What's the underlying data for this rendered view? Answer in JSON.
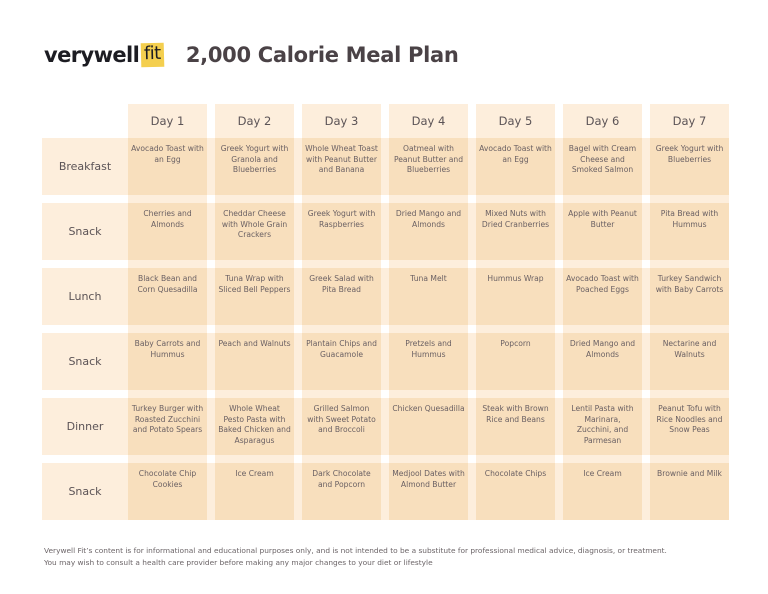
{
  "header": {
    "logo_main": "verywell",
    "logo_accent": "fit",
    "title": "2,000 Calorie Meal Plan",
    "brand_color": "#f4cf4f"
  },
  "days": [
    "Day 1",
    "Day 2",
    "Day 3",
    "Day 4",
    "Day 5",
    "Day 6",
    "Day 7"
  ],
  "meals": [
    {
      "label": "Breakfast",
      "items": [
        "Avocado Toast with an Egg",
        "Greek Yogurt with Granola and Blueberries",
        "Whole Wheat Toast with Peanut Butter and Banana",
        "Oatmeal with Peanut Butter and Blueberries",
        "Avocado Toast with an Egg",
        "Bagel with Cream Cheese and Smoked Salmon",
        "Greek Yogurt with Blueberries"
      ]
    },
    {
      "label": "Snack",
      "items": [
        "Cherries and Almonds",
        "Cheddar Cheese with Whole Grain Crackers",
        "Greek Yogurt with Raspberries",
        "Dried Mango and Almonds",
        "Mixed Nuts with Dried Cranberries",
        "Apple with Peanut Butter",
        "Pita Bread with Hummus"
      ]
    },
    {
      "label": "Lunch",
      "items": [
        "Black Bean and Corn Quesadilla",
        "Tuna Wrap with Sliced Bell Peppers",
        "Greek Salad with Pita Bread",
        "Tuna Melt",
        "Hummus Wrap",
        "Avocado Toast with Poached Eggs",
        "Turkey Sandwich with Baby Carrots"
      ]
    },
    {
      "label": "Snack",
      "items": [
        "Baby Carrots and Hummus",
        "Peach and Walnuts",
        "Plantain Chips and Guacamole",
        "Pretzels and Hummus",
        "Popcorn",
        "Dried Mango and Almonds",
        "Nectarine and Walnuts"
      ]
    },
    {
      "label": "Dinner",
      "items": [
        "Turkey Burger with Roasted Zucchini and Potato Spears",
        "Whole Wheat Pesto Pasta with Baked Chicken and Asparagus",
        "Grilled Salmon with Sweet Potato and Broccoli",
        "Chicken Quesadilla",
        "Steak with Brown Rice and Beans",
        "Lentil Pasta with Marinara, Zucchini, and Parmesan",
        "Peanut Tofu with Rice Noodles and Snow Peas"
      ]
    },
    {
      "label": "Snack",
      "items": [
        "Chocolate Chip Cookies",
        "Ice Cream",
        "Dark Chocolate and Popcorn",
        "Medjool Dates with Almond Butter",
        "Chocolate Chips",
        "Ice Cream",
        "Brownie and Milk"
      ]
    }
  ],
  "footer": {
    "line1": "Verywell Fit’s content is for informational and educational purposes only, and is not intended to be a substitute for professional medical advice, diagnosis, or treatment.",
    "line2": "You may wish to consult a health care provider before making any major changes to your diet or lifestyle"
  }
}
